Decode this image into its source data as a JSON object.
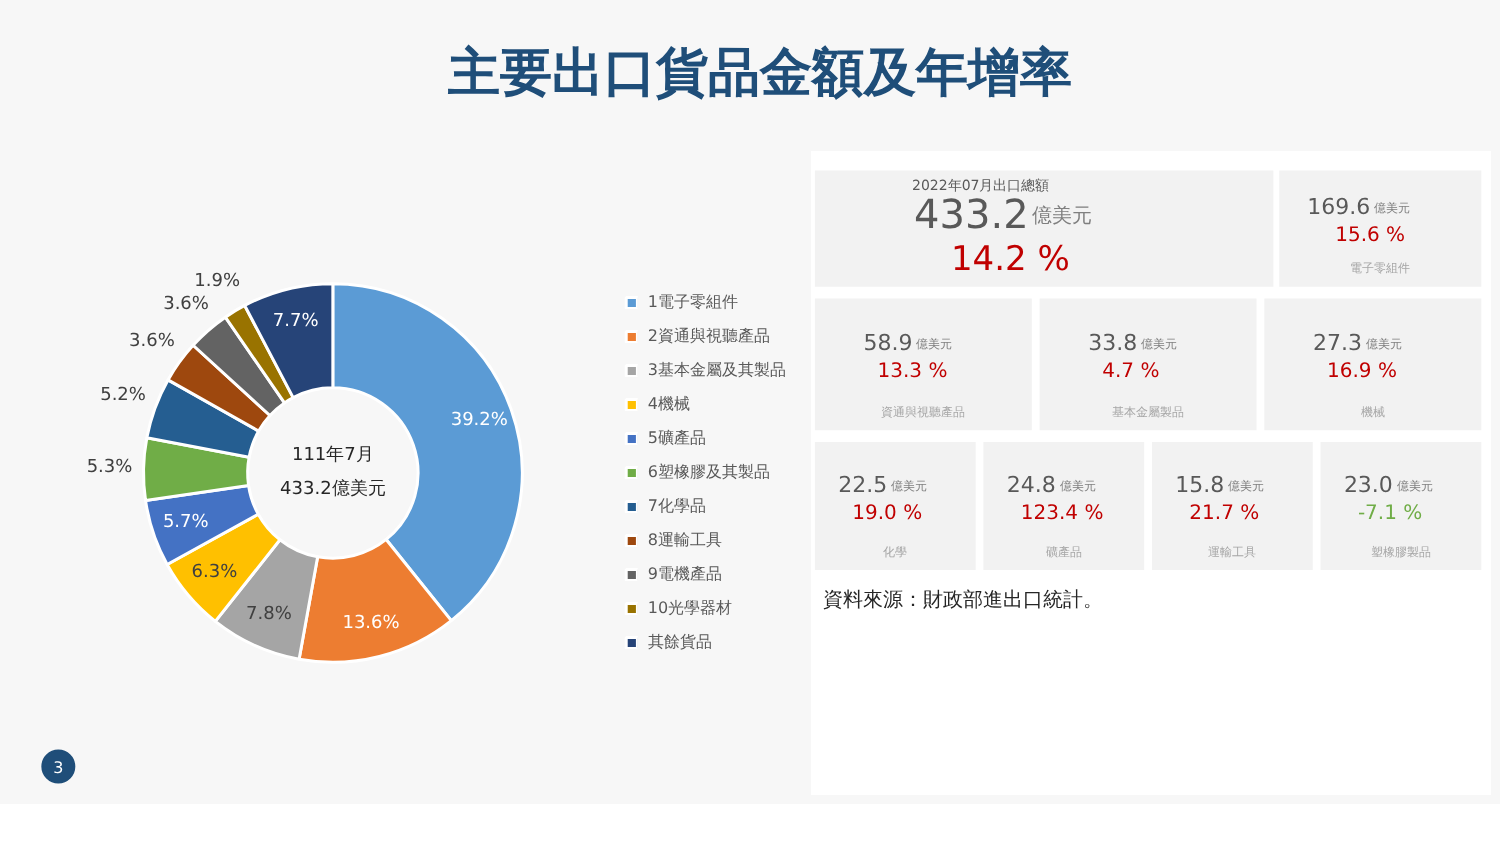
{
  "chart_data": [
    {
      "type": "donut",
      "title": "主要出口貨品金額及年增率",
      "categories": [
        "1電子零組件",
        "2資通與視聽產品",
        "3基本金屬及其製品",
        "4機械",
        "5礦產品",
        "6塑橡膠及其製品",
        "7化學品",
        "8運輸工具",
        "9電機產品",
        "10光學器材",
        "其餘貨品"
      ],
      "values": [
        39.2,
        13.6,
        7.8,
        6.3,
        5.7,
        5.3,
        5.2,
        3.6,
        3.6,
        1.9,
        7.7
      ],
      "colors": [
        "#5b9bd5",
        "#ed7d31",
        "#a5a5a5",
        "#ffc000",
        "#4472c4",
        "#70ad47",
        "#255e91",
        "#9e480e",
        "#636363",
        "#997300",
        "#264478"
      ],
      "value_labels": [
        "39.2%",
        "13.6%",
        "7.8%",
        "6.3%",
        "5.7%",
        "5.3%",
        "5.2%",
        "3.6%",
        "3.6%",
        "1.9%",
        "7.7%"
      ],
      "legend": "right",
      "annotations": [
        "111年7月",
        "433.2億美元",
        "3"
      ]
    },
    {
      "type": "other",
      "annotations": [
        "433.2",
        "億美元",
        "14.2 %",
        "2022年07月出口總額",
        "169.6",
        "億美元",
        "15.6 %",
        "電子零組件",
        "58.9",
        "億美元",
        "13.3 %",
        "資通與視聽產品",
        "33.8",
        "億美元",
        "4.7 %",
        "基本金屬製品",
        "27.3",
        "億美元",
        "16.9 %",
        "機械",
        "22.5",
        "億美元",
        "19.0 %",
        "化學",
        "24.8",
        "億美元",
        "123.4 %",
        "礦產品",
        "15.8",
        "億美元",
        "21.7 %",
        "運輸工具",
        "23.0",
        "億美元",
        "-7.1 %",
        "塑橡膠製品",
        "資料來源：財政部進出口統計。"
      ]
    }
  ]
}
